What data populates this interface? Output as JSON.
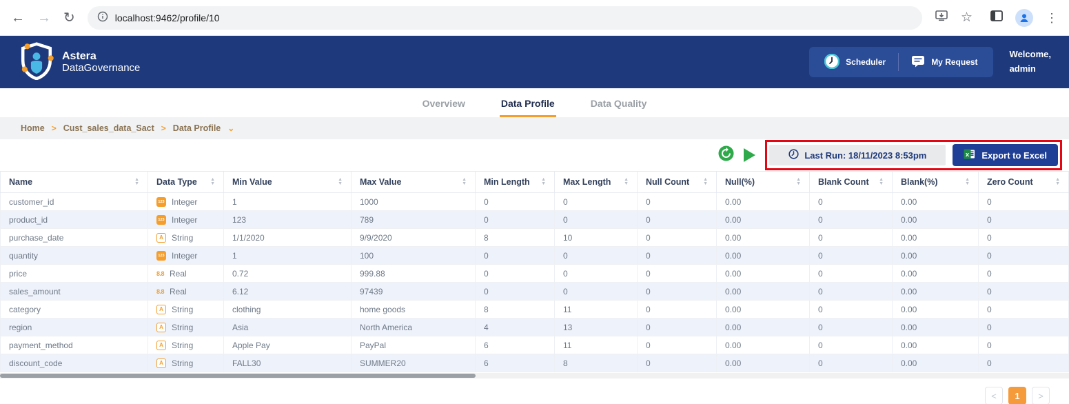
{
  "browser": {
    "url": "localhost:9462/profile/10"
  },
  "header": {
    "brand_line1": "Astera",
    "brand_line2": "DataGovernance",
    "scheduler_label": "Scheduler",
    "my_request_label": "My Request",
    "welcome_line1": "Welcome,",
    "welcome_line2": "admin"
  },
  "tabs": [
    {
      "label": "Overview",
      "active": false
    },
    {
      "label": "Data Profile",
      "active": true
    },
    {
      "label": "Data Quality",
      "active": false
    }
  ],
  "breadcrumb": {
    "items": [
      "Home",
      "Cust_sales_data_Sact",
      "Data Profile"
    ]
  },
  "toolbar": {
    "last_run_label": "Last Run: 18/11/2023 8:53pm",
    "export_label": "Export to Excel"
  },
  "table": {
    "columns": [
      {
        "key": "name",
        "label": "Name"
      },
      {
        "key": "data_type",
        "label": "Data Type"
      },
      {
        "key": "min_value",
        "label": "Min Value"
      },
      {
        "key": "max_value",
        "label": "Max Value"
      },
      {
        "key": "min_length",
        "label": "Min Length"
      },
      {
        "key": "max_length",
        "label": "Max Length"
      },
      {
        "key": "null_count",
        "label": "Null Count"
      },
      {
        "key": "null_pct",
        "label": "Null(%)"
      },
      {
        "key": "blank_count",
        "label": "Blank Count"
      },
      {
        "key": "blank_pct",
        "label": "Blank(%)"
      },
      {
        "key": "zero_count",
        "label": "Zero Count"
      }
    ],
    "rows": [
      {
        "name": "customer_id",
        "type": "Integer",
        "min_value": "1",
        "max_value": "1000",
        "min_length": "0",
        "max_length": "0",
        "null_count": "0",
        "null_pct": "0.00",
        "blank_count": "0",
        "blank_pct": "0.00",
        "zero_count": "0"
      },
      {
        "name": "product_id",
        "type": "Integer",
        "min_value": "123",
        "max_value": "789",
        "min_length": "0",
        "max_length": "0",
        "null_count": "0",
        "null_pct": "0.00",
        "blank_count": "0",
        "blank_pct": "0.00",
        "zero_count": "0"
      },
      {
        "name": "purchase_date",
        "type": "String",
        "min_value": "1/1/2020",
        "max_value": "9/9/2020",
        "min_length": "8",
        "max_length": "10",
        "null_count": "0",
        "null_pct": "0.00",
        "blank_count": "0",
        "blank_pct": "0.00",
        "zero_count": "0"
      },
      {
        "name": "quantity",
        "type": "Integer",
        "min_value": "1",
        "max_value": "100",
        "min_length": "0",
        "max_length": "0",
        "null_count": "0",
        "null_pct": "0.00",
        "blank_count": "0",
        "blank_pct": "0.00",
        "zero_count": "0"
      },
      {
        "name": "price",
        "type": "Real",
        "min_value": "0.72",
        "max_value": "999.88",
        "min_length": "0",
        "max_length": "0",
        "null_count": "0",
        "null_pct": "0.00",
        "blank_count": "0",
        "blank_pct": "0.00",
        "zero_count": "0"
      },
      {
        "name": "sales_amount",
        "type": "Real",
        "min_value": "6.12",
        "max_value": "97439",
        "min_length": "0",
        "max_length": "0",
        "null_count": "0",
        "null_pct": "0.00",
        "blank_count": "0",
        "blank_pct": "0.00",
        "zero_count": "0"
      },
      {
        "name": "category",
        "type": "String",
        "min_value": "clothing",
        "max_value": "home goods",
        "min_length": "8",
        "max_length": "11",
        "null_count": "0",
        "null_pct": "0.00",
        "blank_count": "0",
        "blank_pct": "0.00",
        "zero_count": "0"
      },
      {
        "name": "region",
        "type": "String",
        "min_value": "Asia",
        "max_value": "North America",
        "min_length": "4",
        "max_length": "13",
        "null_count": "0",
        "null_pct": "0.00",
        "blank_count": "0",
        "blank_pct": "0.00",
        "zero_count": "0"
      },
      {
        "name": "payment_method",
        "type": "String",
        "min_value": "Apple Pay",
        "max_value": "PayPal",
        "min_length": "6",
        "max_length": "11",
        "null_count": "0",
        "null_pct": "0.00",
        "blank_count": "0",
        "blank_pct": "0.00",
        "zero_count": "0"
      },
      {
        "name": "discount_code",
        "type": "String",
        "min_value": "FALL30",
        "max_value": "SUMMER20",
        "min_length": "6",
        "max_length": "8",
        "null_count": "0",
        "null_pct": "0.00",
        "blank_count": "0",
        "blank_pct": "0.00",
        "zero_count": "0"
      }
    ]
  },
  "pagination": {
    "prev_label": "<",
    "page": "1",
    "next_label": ">"
  },
  "colors": {
    "header_navy": "#1e3a7d",
    "pill_blue": "#2b4c97",
    "accent_orange": "#f59e2b",
    "active_page_orange": "#f59b3c",
    "green": "#2faa4a",
    "annotation_red": "#e30613",
    "export_navy": "#1f3f96",
    "row_stripe": "#eef2fa"
  }
}
